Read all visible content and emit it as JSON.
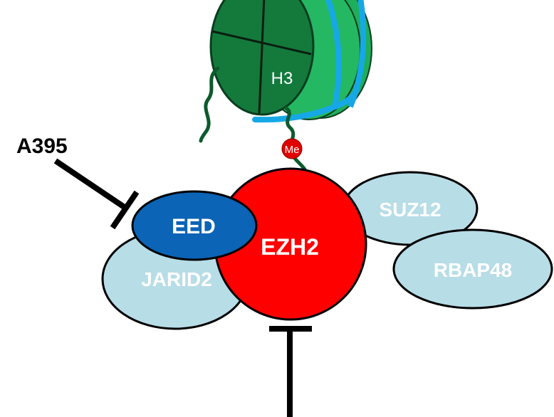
{
  "inhibitor": {
    "label": "A395"
  },
  "nucleosome": {
    "histone_label": "H3"
  },
  "methyl_mark": {
    "label": "Me"
  },
  "complex": {
    "eed": "EED",
    "ezh2": "EZH2",
    "jarid2": "JARID2",
    "suz12": "SUZ12",
    "rbap48": "RBAP48"
  },
  "colors": {
    "histone_dark": "#137a3c",
    "histone_mid": "#1a9a4f",
    "histone_light": "#27b764",
    "dna": "#16a8e6",
    "tail": "#0d5a2c",
    "ezh2": "#ff0000",
    "eed": "#0b64b5",
    "pale_subunit": "#b7dde7",
    "inhibitor_bar": "#000000"
  }
}
